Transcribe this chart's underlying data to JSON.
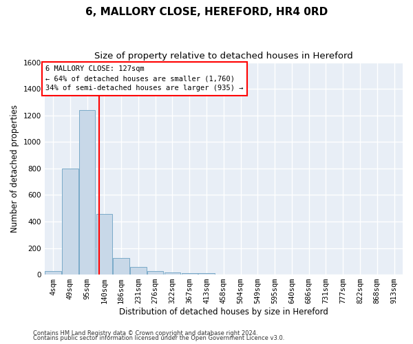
{
  "title": "6, MALLORY CLOSE, HEREFORD, HR4 0RD",
  "subtitle": "Size of property relative to detached houses in Hereford",
  "xlabel": "Distribution of detached houses by size in Hereford",
  "ylabel": "Number of detached properties",
  "categories": [
    "4sqm",
    "49sqm",
    "95sqm",
    "140sqm",
    "186sqm",
    "231sqm",
    "276sqm",
    "322sqm",
    "367sqm",
    "413sqm",
    "458sqm",
    "504sqm",
    "549sqm",
    "595sqm",
    "640sqm",
    "686sqm",
    "731sqm",
    "777sqm",
    "822sqm",
    "868sqm",
    "913sqm"
  ],
  "values": [
    25,
    800,
    1240,
    455,
    125,
    60,
    27,
    18,
    12,
    10,
    0,
    0,
    0,
    0,
    0,
    0,
    0,
    0,
    0,
    0,
    0
  ],
  "bar_color": "#c8d8e8",
  "bar_edge_color": "#7aaac8",
  "ylim": [
    0,
    1600
  ],
  "yticks": [
    0,
    200,
    400,
    600,
    800,
    1000,
    1200,
    1400,
    1600
  ],
  "annotation_title": "6 MALLORY CLOSE: 127sqm",
  "annotation_line1": "← 64% of detached houses are smaller (1,760)",
  "annotation_line2": "34% of semi-detached houses are larger (935) →",
  "footer1": "Contains HM Land Registry data © Crown copyright and database right 2024.",
  "footer2": "Contains public sector information licensed under the Open Government Licence v3.0.",
  "plot_bg_color": "#e8eef6",
  "grid_color": "#ffffff",
  "title_fontsize": 11,
  "subtitle_fontsize": 9.5,
  "axis_label_fontsize": 8.5,
  "tick_fontsize": 7.5,
  "footer_fontsize": 6
}
